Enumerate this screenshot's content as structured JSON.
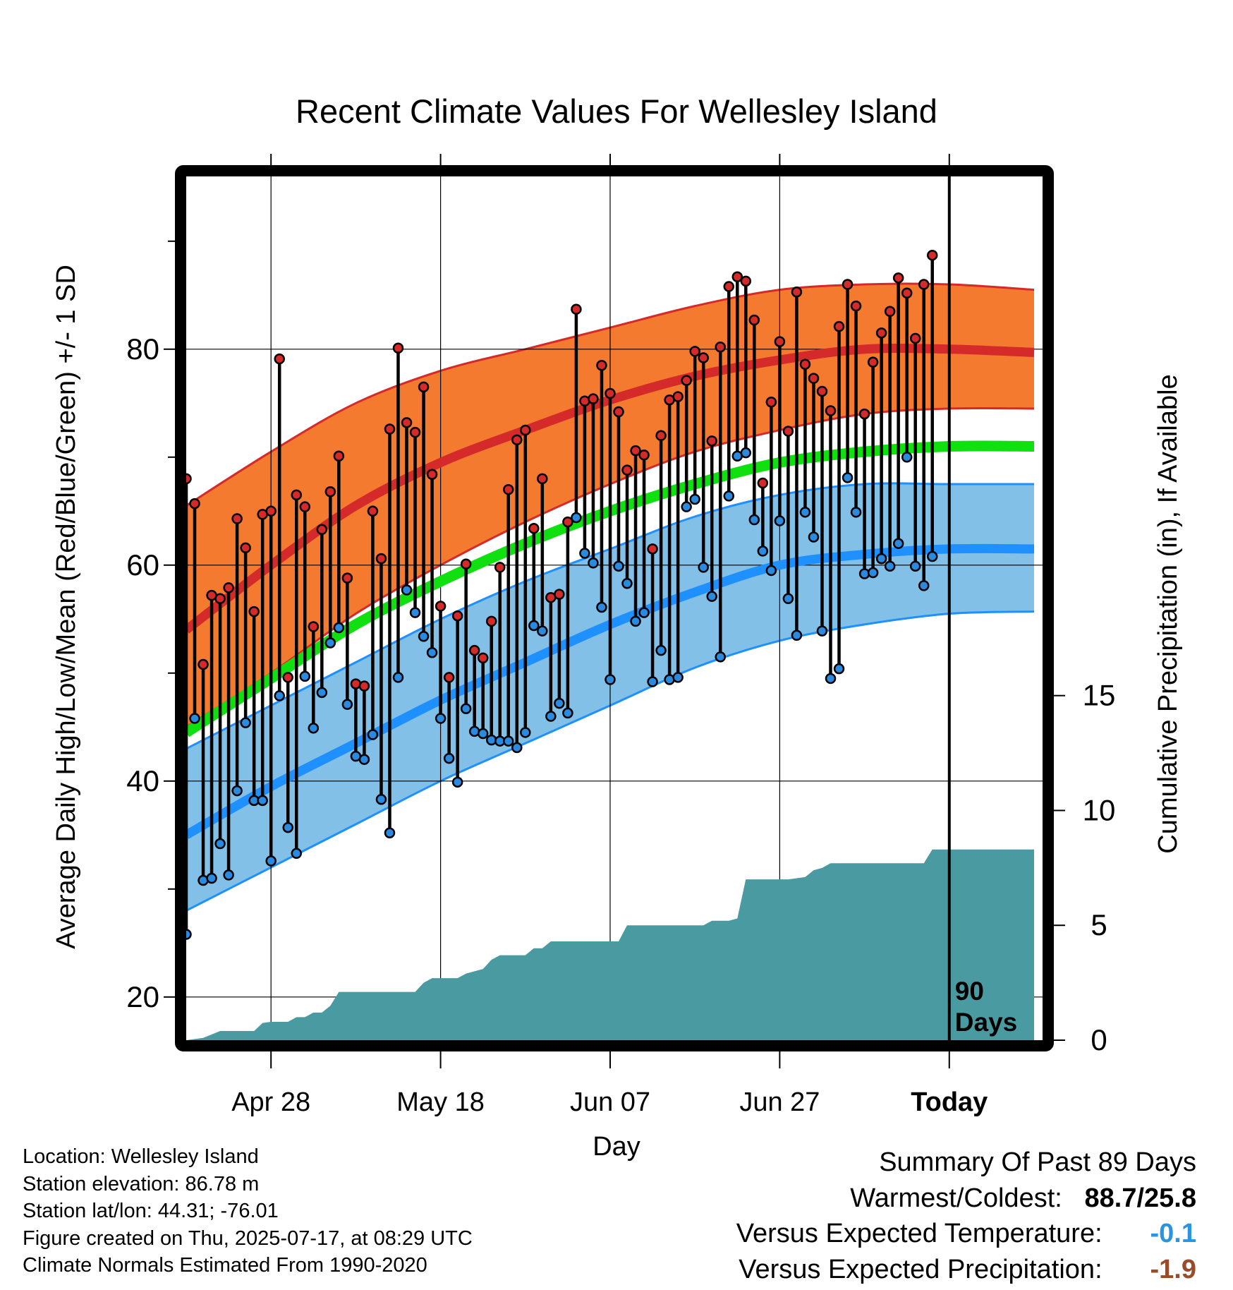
{
  "title": "Recent Climate Values For Wellesley Island",
  "chart_data": {
    "type": "line",
    "title": "Recent Climate Values For Wellesley Island",
    "xlabel": "Day",
    "ylabel_left": "Average Daily High/Low/Mean (Red/Blue/Green) +/- 1 SD",
    "ylabel_right": "Cumulative Precipitation (in), If Available",
    "xlim_days": [
      0,
      101
    ],
    "ylim_left": [
      16,
      96
    ],
    "ylim_right": [
      0,
      37.6
    ],
    "x_tick_days": [
      10,
      30,
      50,
      70,
      90
    ],
    "x_tick_labels": [
      "Apr 28",
      "May 18",
      "Jun 07",
      "Jun 27",
      "Today"
    ],
    "y_left_ticks": [
      20,
      40,
      60,
      80
    ],
    "y_left_tick_labels": [
      "20",
      "40",
      "60",
      "80"
    ],
    "y_left_minor_ticks": [
      30,
      50,
      70,
      90
    ],
    "y_right_ticks": [
      0,
      5,
      10,
      15
    ],
    "y_right_tick_labels": [
      "0",
      "5",
      "10",
      "15"
    ],
    "grid": true,
    "today_day": 90,
    "today_label": [
      "90",
      "Days"
    ],
    "colors": {
      "high_band": "#f47a30",
      "high_mean": "#d42a2a",
      "low_band": "#82c0e8",
      "low_mean": "#1e90ff",
      "avg_mean": "#10e010",
      "precip": "#4a9aa2",
      "high_dot": "#d42a2a",
      "low_dot": "#2a8ae0"
    },
    "normals_x": [
      0,
      10,
      20,
      30,
      40,
      50,
      60,
      70,
      80,
      90,
      100
    ],
    "normal_high": [
      54.0,
      60.0,
      65.5,
      69.5,
      72.5,
      75.3,
      77.5,
      79.0,
      80.0,
      80.0,
      79.7
    ],
    "normal_high_upper": [
      65.5,
      70.5,
      75.0,
      78.0,
      80.0,
      82.0,
      84.0,
      85.5,
      86.0,
      86.0,
      85.5
    ],
    "normal_high_lower": [
      45.0,
      50.0,
      55.5,
      60.0,
      64.0,
      67.5,
      70.5,
      72.5,
      74.0,
      74.5,
      74.5
    ],
    "normal_low": [
      35.0,
      39.5,
      43.5,
      47.5,
      51.0,
      54.5,
      57.5,
      60.0,
      61.0,
      61.5,
      61.5
    ],
    "normal_low_upper": [
      43.0,
      47.0,
      51.0,
      55.0,
      58.5,
      61.5,
      64.5,
      66.5,
      67.5,
      67.5,
      67.5
    ],
    "normal_low_lower": [
      28.0,
      32.0,
      36.0,
      40.0,
      43.5,
      47.0,
      50.5,
      53.0,
      54.5,
      55.5,
      55.7
    ],
    "normal_avg": [
      44.5,
      49.5,
      54.5,
      58.5,
      62.0,
      65.0,
      67.5,
      69.5,
      70.5,
      71.0,
      71.0
    ],
    "daily_high": [
      68,
      65.7,
      50.8,
      57.2,
      56.9,
      57.9,
      64.3,
      61.6,
      55.7,
      64.7,
      65.0,
      79.1,
      49.6,
      66.5,
      65.4,
      54.3,
      63.3,
      66.8,
      70.1,
      58.8,
      49.0,
      48.8,
      65.0,
      60.6,
      72.6,
      80.1,
      73.2,
      72.3,
      76.5,
      68.4,
      56.2,
      49.6,
      55.3,
      60.1,
      52.1,
      51.4,
      54.8,
      59.8,
      67.0,
      71.6,
      72.5,
      63.4,
      68.0,
      57.0,
      57.3,
      64.0,
      83.7,
      75.2,
      75.4,
      78.5,
      75.9,
      74.2,
      68.8,
      70.6,
      70.2,
      61.5,
      72.0,
      75.3,
      75.6,
      77.1,
      79.8,
      79.2,
      71.5,
      80.2,
      85.8,
      86.7,
      86.3,
      82.7,
      67.6,
      75.1,
      80.7,
      72.4,
      85.3,
      78.6,
      77.3,
      76.1,
      74.3,
      82.1,
      86.0,
      84.0,
      74.0,
      78.8,
      81.5,
      83.5,
      86.6,
      85.2,
      81.0,
      86.0,
      88.7
    ],
    "daily_low": [
      25.8,
      45.8,
      30.8,
      31.0,
      34.2,
      31.3,
      39.1,
      45.4,
      38.2,
      38.2,
      32.6,
      47.9,
      35.7,
      33.3,
      49.7,
      44.9,
      48.2,
      52.8,
      54.2,
      47.1,
      42.3,
      42.0,
      44.3,
      38.3,
      35.2,
      49.6,
      57.7,
      55.6,
      53.4,
      51.9,
      45.8,
      42.1,
      39.9,
      46.7,
      44.6,
      44.4,
      43.8,
      43.7,
      43.7,
      43.1,
      44.5,
      54.4,
      53.9,
      46.0,
      47.2,
      46.3,
      64.4,
      61.1,
      60.2,
      56.1,
      49.4,
      59.9,
      58.3,
      54.8,
      55.6,
      49.2,
      52.1,
      49.4,
      49.6,
      65.4,
      66.1,
      59.8,
      57.1,
      51.5,
      66.4,
      70.1,
      70.4,
      64.2,
      61.3,
      59.5,
      64.1,
      56.9,
      53.5,
      64.9,
      62.6,
      53.9,
      49.5,
      50.4,
      68.1,
      64.9,
      59.2,
      59.3,
      60.6,
      59.9,
      62.0,
      70.0,
      59.9,
      58.1,
      60.8
    ],
    "precip_cumulative": [
      [
        0,
        0.0
      ],
      [
        2,
        0.1
      ],
      [
        3,
        0.25
      ],
      [
        4,
        0.4
      ],
      [
        8,
        0.4
      ],
      [
        9,
        0.75
      ],
      [
        10,
        0.8
      ],
      [
        12,
        0.8
      ],
      [
        13,
        1.0
      ],
      [
        14,
        1.0
      ],
      [
        15,
        1.2
      ],
      [
        16,
        1.2
      ],
      [
        17,
        1.5
      ],
      [
        18,
        2.1
      ],
      [
        27,
        2.1
      ],
      [
        28,
        2.5
      ],
      [
        29,
        2.7
      ],
      [
        32,
        2.7
      ],
      [
        33,
        2.9
      ],
      [
        35,
        3.1
      ],
      [
        36,
        3.5
      ],
      [
        37,
        3.7
      ],
      [
        40,
        3.7
      ],
      [
        41,
        4.0
      ],
      [
        42,
        4.0
      ],
      [
        43,
        4.3
      ],
      [
        51,
        4.3
      ],
      [
        52,
        5.0
      ],
      [
        61,
        5.0
      ],
      [
        62,
        5.2
      ],
      [
        64,
        5.2
      ],
      [
        65,
        5.3
      ],
      [
        66,
        7.0
      ],
      [
        71,
        7.0
      ],
      [
        73,
        7.1
      ],
      [
        74,
        7.4
      ],
      [
        75,
        7.5
      ],
      [
        76,
        7.7
      ],
      [
        87,
        7.7
      ],
      [
        88,
        8.3
      ],
      [
        100,
        8.3
      ]
    ]
  },
  "info": {
    "location": "Location: Wellesley Island",
    "elevation": "Station elevation: 86.78 m",
    "latlon": "Station lat/lon: 44.31; -76.01",
    "created": "Figure created on Thu, 2025-07-17, at 08:29 UTC",
    "normals": "Climate Normals Estimated From 1990-2020"
  },
  "summary": {
    "heading": "Summary Of Past 89 Days",
    "warm_cold_label": "Warmest/Coldest:",
    "warm_cold_value": "88.7/25.8",
    "temp_label": "Versus Expected Temperature:",
    "temp_value": "-0.1",
    "precip_label": "Versus Expected Precipitation:",
    "precip_value": "-1.9"
  }
}
